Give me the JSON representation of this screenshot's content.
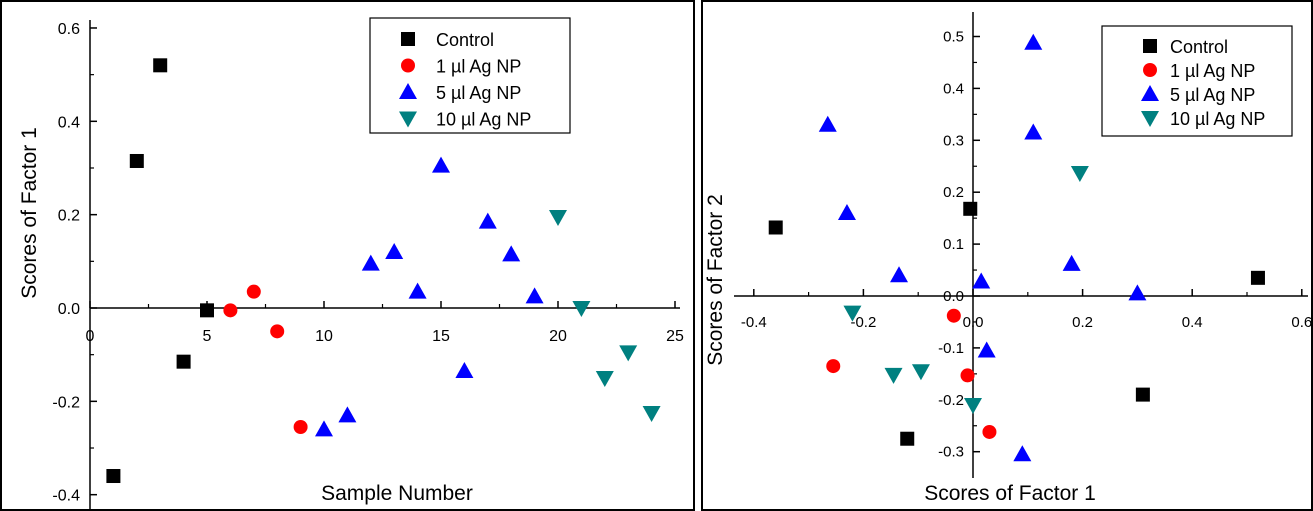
{
  "chart_data": [
    {
      "type": "scatter",
      "title": "",
      "xlabel": "Sample Number",
      "ylabel": "Scores of Factor 1",
      "xlim": [
        0,
        25
      ],
      "ylim": [
        -0.4,
        0.6
      ],
      "xticks": [
        "0",
        "5",
        "10",
        "15",
        "20",
        "25"
      ],
      "yticks": [
        "-0.4",
        "-0.2",
        "0.0",
        "0.2",
        "0.4",
        "0.6"
      ],
      "legend_position": "top-right",
      "series": [
        {
          "name": "Control",
          "marker": "square",
          "color": "#000000",
          "points": [
            [
              1,
              -0.36
            ],
            [
              2,
              0.315
            ],
            [
              3,
              0.52
            ],
            [
              4,
              -0.115
            ],
            [
              5,
              -0.005
            ]
          ]
        },
        {
          "name": "1 µl Ag NP",
          "marker": "circle",
          "color": "#ff0000",
          "points": [
            [
              6,
              -0.005
            ],
            [
              7,
              0.035
            ],
            [
              8,
              -0.05
            ],
            [
              9,
              -0.255
            ]
          ]
        },
        {
          "name": "5 µl Ag NP",
          "marker": "triangle-up",
          "color": "#0000ff",
          "points": [
            [
              10,
              -0.26
            ],
            [
              11,
              -0.23
            ],
            [
              12,
              0.095
            ],
            [
              13,
              0.12
            ],
            [
              14,
              0.035
            ],
            [
              15,
              0.305
            ],
            [
              16,
              -0.135
            ],
            [
              17,
              0.185
            ],
            [
              18,
              0.115
            ],
            [
              19,
              0.025
            ]
          ]
        },
        {
          "name": "10 µl Ag NP",
          "marker": "triangle-down",
          "color": "#008080",
          "points": [
            [
              20,
              0.195
            ],
            [
              21,
              0.0
            ],
            [
              22,
              -0.15
            ],
            [
              23,
              -0.095
            ],
            [
              24,
              -0.225
            ]
          ]
        }
      ]
    },
    {
      "type": "scatter",
      "title": "",
      "xlabel": "Scores of Factor 1",
      "ylabel": "Scores of Factor 2",
      "xlim": [
        -0.45,
        0.7
      ],
      "ylim": [
        -0.33,
        0.55
      ],
      "xticks": [
        "-0.4",
        "-0.2",
        "0.0",
        "0.2",
        "0.4",
        "0.6"
      ],
      "yticks": [
        "-0.3",
        "-0.2",
        "-0.1",
        "0.0",
        "0.1",
        "0.2",
        "0.3",
        "0.4",
        "0.5"
      ],
      "legend_position": "top-right",
      "series": [
        {
          "name": "Control",
          "marker": "square",
          "color": "#000000",
          "points": [
            [
              -0.36,
              0.132
            ],
            [
              -0.12,
              -0.275
            ],
            [
              -0.005,
              0.168
            ],
            [
              0.31,
              -0.19
            ],
            [
              0.52,
              0.035
            ]
          ]
        },
        {
          "name": "1 µl Ag NP",
          "marker": "circle",
          "color": "#ff0000",
          "points": [
            [
              -0.255,
              -0.135
            ],
            [
              -0.035,
              -0.038
            ],
            [
              -0.01,
              -0.153
            ],
            [
              0.03,
              -0.262
            ]
          ]
        },
        {
          "name": "5 µl Ag NP",
          "marker": "triangle-up",
          "color": "#0000ff",
          "points": [
            [
              -0.265,
              0.33
            ],
            [
              -0.23,
              0.16
            ],
            [
              -0.135,
              0.04
            ],
            [
              0.015,
              0.028
            ],
            [
              0.025,
              -0.105
            ],
            [
              0.09,
              -0.305
            ],
            [
              0.11,
              0.488
            ],
            [
              0.11,
              0.315
            ],
            [
              0.18,
              0.062
            ],
            [
              0.3,
              0.005
            ]
          ]
        },
        {
          "name": "10 µl Ag NP",
          "marker": "triangle-down",
          "color": "#008080",
          "points": [
            [
              -0.22,
              -0.032
            ],
            [
              -0.145,
              -0.152
            ],
            [
              -0.095,
              -0.145
            ],
            [
              0.0,
              -0.21
            ],
            [
              0.195,
              0.237
            ]
          ]
        }
      ]
    }
  ]
}
